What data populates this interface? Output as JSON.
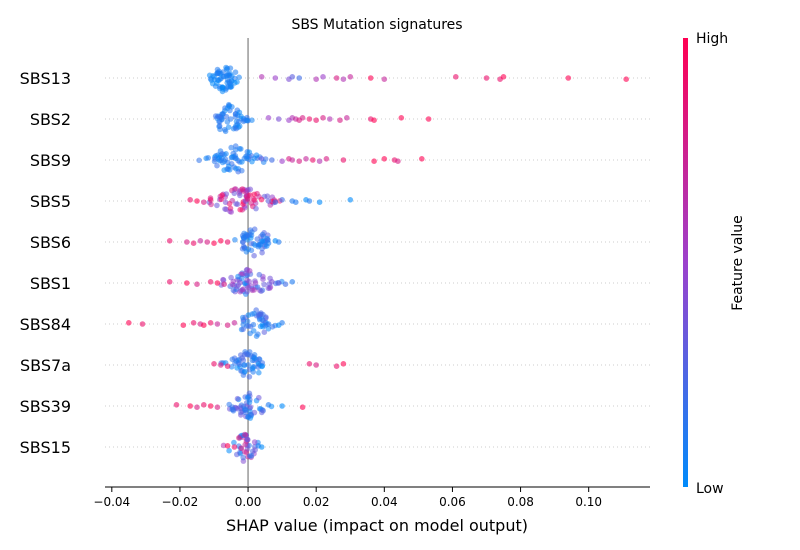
{
  "chart_data": {
    "type": "scatter",
    "subtype": "shap-beeswarm",
    "title": "SBS Mutation signatures",
    "xlabel": "SHAP value (impact on model output)",
    "xlim": [
      -0.042,
      0.118
    ],
    "xticks": [
      -0.04,
      -0.02,
      0.0,
      0.02,
      0.04,
      0.06,
      0.08,
      0.1
    ],
    "xtick_labels": [
      "−0.04",
      "−0.02",
      "0.00",
      "0.02",
      "0.04",
      "0.06",
      "0.08",
      "0.10"
    ],
    "zero_line": 0.0,
    "colorbar": {
      "title": "Feature value",
      "high_label": "High",
      "low_label": "Low",
      "color_high": "#ff0052",
      "color_mid": "#9c41cc",
      "color_low": "#008bfb"
    },
    "features": [
      {
        "name": "SBS13",
        "points": [
          {
            "x": 0.004,
            "v": 0.6
          },
          {
            "x": 0.008,
            "v": 0.5
          },
          {
            "x": 0.012,
            "v": 0.4
          },
          {
            "x": 0.013,
            "v": 0.3
          },
          {
            "x": 0.015,
            "v": 0.2
          },
          {
            "x": 0.02,
            "v": 0.6
          },
          {
            "x": 0.022,
            "v": 0.5
          },
          {
            "x": 0.026,
            "v": 0.8
          },
          {
            "x": 0.028,
            "v": 0.6
          },
          {
            "x": 0.03,
            "v": 0.7
          },
          {
            "x": 0.036,
            "v": 1.0
          },
          {
            "x": 0.04,
            "v": 0.7
          },
          {
            "x": 0.061,
            "v": 0.9
          },
          {
            "x": 0.07,
            "v": 0.9
          },
          {
            "x": 0.074,
            "v": 0.9
          },
          {
            "x": 0.075,
            "v": 1.0
          },
          {
            "x": 0.094,
            "v": 1.0
          },
          {
            "x": 0.111,
            "v": 1.0
          }
        ],
        "cluster": {
          "center": -0.007,
          "spread": 0.0025,
          "count": 60,
          "v_min": 0.0,
          "v_max": 0.12
        }
      },
      {
        "name": "SBS2",
        "points": [
          {
            "x": 0.006,
            "v": 0.5
          },
          {
            "x": 0.009,
            "v": 0.4
          },
          {
            "x": 0.012,
            "v": 0.5
          },
          {
            "x": 0.013,
            "v": 0.6
          },
          {
            "x": 0.014,
            "v": 0.7
          },
          {
            "x": 0.015,
            "v": 0.8
          },
          {
            "x": 0.016,
            "v": 0.8
          },
          {
            "x": 0.018,
            "v": 0.9
          },
          {
            "x": 0.02,
            "v": 0.9
          },
          {
            "x": 0.022,
            "v": 0.8
          },
          {
            "x": 0.024,
            "v": 0.6
          },
          {
            "x": 0.027,
            "v": 0.8
          },
          {
            "x": 0.029,
            "v": 0.7
          },
          {
            "x": 0.036,
            "v": 0.9
          },
          {
            "x": 0.037,
            "v": 1.0
          },
          {
            "x": 0.045,
            "v": 1.0
          },
          {
            "x": 0.053,
            "v": 1.0
          }
        ],
        "cluster": {
          "center": -0.006,
          "spread": 0.003,
          "count": 55,
          "v_min": 0.0,
          "v_max": 0.2
        }
      },
      {
        "name": "SBS9",
        "points": [
          {
            "x": 0.004,
            "v": 0.3
          },
          {
            "x": 0.007,
            "v": 0.2
          },
          {
            "x": 0.01,
            "v": 0.5
          },
          {
            "x": 0.012,
            "v": 0.8
          },
          {
            "x": 0.013,
            "v": 0.7
          },
          {
            "x": 0.015,
            "v": 0.8
          },
          {
            "x": 0.017,
            "v": 0.7
          },
          {
            "x": 0.019,
            "v": 0.9
          },
          {
            "x": 0.021,
            "v": 0.6
          },
          {
            "x": 0.023,
            "v": 0.8
          },
          {
            "x": 0.028,
            "v": 0.9
          },
          {
            "x": 0.037,
            "v": 1.0
          },
          {
            "x": 0.04,
            "v": 1.0
          },
          {
            "x": 0.043,
            "v": 0.9
          },
          {
            "x": 0.044,
            "v": 0.8
          },
          {
            "x": 0.051,
            "v": 1.0
          }
        ],
        "cluster": {
          "center": -0.004,
          "spread": 0.004,
          "count": 65,
          "v_min": 0.0,
          "v_max": 0.2
        }
      },
      {
        "name": "SBS5",
        "points": [
          {
            "x": -0.017,
            "v": 0.9
          },
          {
            "x": -0.015,
            "v": 1.0
          },
          {
            "x": -0.013,
            "v": 0.8
          },
          {
            "x": -0.011,
            "v": 0.9
          },
          {
            "x": 0.006,
            "v": 0.3
          },
          {
            "x": 0.008,
            "v": 0.2
          },
          {
            "x": 0.01,
            "v": 0.2
          },
          {
            "x": 0.013,
            "v": 0.1
          },
          {
            "x": 0.014,
            "v": 0.1
          },
          {
            "x": 0.017,
            "v": 0.0
          },
          {
            "x": 0.018,
            "v": 0.1
          },
          {
            "x": 0.021,
            "v": 0.0
          },
          {
            "x": 0.03,
            "v": 0.0
          }
        ],
        "cluster": {
          "center": -0.002,
          "spread": 0.005,
          "count": 70,
          "v_min": 0.3,
          "v_max": 1.0
        }
      },
      {
        "name": "SBS6",
        "points": [
          {
            "x": -0.023,
            "v": 0.9
          },
          {
            "x": -0.018,
            "v": 0.8
          },
          {
            "x": -0.016,
            "v": 0.9
          },
          {
            "x": -0.014,
            "v": 0.7
          },
          {
            "x": -0.012,
            "v": 0.8
          },
          {
            "x": -0.01,
            "v": 1.0
          },
          {
            "x": -0.008,
            "v": 1.0
          },
          {
            "x": -0.006,
            "v": 0.9
          },
          {
            "x": 0.006,
            "v": 0.1
          },
          {
            "x": 0.008,
            "v": 0.0
          },
          {
            "x": 0.009,
            "v": 0.1
          }
        ],
        "cluster": {
          "center": 0.002,
          "spread": 0.003,
          "count": 55,
          "v_min": 0.0,
          "v_max": 0.3
        }
      },
      {
        "name": "SBS1",
        "points": [
          {
            "x": -0.023,
            "v": 0.9
          },
          {
            "x": -0.018,
            "v": 1.0
          },
          {
            "x": -0.015,
            "v": 0.8
          },
          {
            "x": -0.011,
            "v": 0.9
          },
          {
            "x": -0.009,
            "v": 1.0
          },
          {
            "x": -0.007,
            "v": 0.8
          },
          {
            "x": 0.007,
            "v": 0.4
          },
          {
            "x": 0.009,
            "v": 0.3
          },
          {
            "x": 0.011,
            "v": 0.2
          },
          {
            "x": 0.013,
            "v": 0.1
          }
        ],
        "cluster": {
          "center": 0.0,
          "spread": 0.004,
          "count": 65,
          "v_min": 0.0,
          "v_max": 0.6
        }
      },
      {
        "name": "SBS84",
        "points": [
          {
            "x": -0.035,
            "v": 1.0
          },
          {
            "x": -0.031,
            "v": 0.9
          },
          {
            "x": -0.019,
            "v": 1.0
          },
          {
            "x": -0.016,
            "v": 0.9
          },
          {
            "x": -0.014,
            "v": 0.8
          },
          {
            "x": -0.013,
            "v": 1.0
          },
          {
            "x": -0.011,
            "v": 0.9
          },
          {
            "x": -0.009,
            "v": 0.7
          },
          {
            "x": -0.006,
            "v": 0.8
          },
          {
            "x": -0.004,
            "v": 0.7
          },
          {
            "x": 0.006,
            "v": 0.1
          },
          {
            "x": 0.009,
            "v": 0.0
          },
          {
            "x": 0.01,
            "v": 0.1
          }
        ],
        "cluster": {
          "center": 0.002,
          "spread": 0.003,
          "count": 45,
          "v_min": 0.0,
          "v_max": 0.3
        }
      },
      {
        "name": "SBS7a",
        "points": [
          {
            "x": -0.01,
            "v": 0.9
          },
          {
            "x": -0.008,
            "v": 0.8
          },
          {
            "x": -0.006,
            "v": 0.9
          },
          {
            "x": 0.018,
            "v": 0.9
          },
          {
            "x": 0.02,
            "v": 0.8
          },
          {
            "x": 0.026,
            "v": 0.9
          },
          {
            "x": 0.028,
            "v": 1.0
          }
        ],
        "cluster": {
          "center": 0.0,
          "spread": 0.003,
          "count": 55,
          "v_min": 0.0,
          "v_max": 0.25
        }
      },
      {
        "name": "SBS39",
        "points": [
          {
            "x": -0.021,
            "v": 0.9
          },
          {
            "x": -0.017,
            "v": 1.0
          },
          {
            "x": -0.015,
            "v": 0.8
          },
          {
            "x": -0.013,
            "v": 0.9
          },
          {
            "x": -0.011,
            "v": 1.0
          },
          {
            "x": -0.009,
            "v": 0.8
          },
          {
            "x": 0.006,
            "v": 0.1
          },
          {
            "x": 0.01,
            "v": 0.0
          },
          {
            "x": 0.016,
            "v": 1.0
          }
        ],
        "cluster": {
          "center": 0.0,
          "spread": 0.003,
          "count": 50,
          "v_min": 0.0,
          "v_max": 0.4
        }
      },
      {
        "name": "SBS15",
        "points": [
          {
            "x": -0.006,
            "v": 1.0
          },
          {
            "x": -0.004,
            "v": 0.9
          },
          {
            "x": -0.002,
            "v": 0.8
          },
          {
            "x": 0.003,
            "v": 0.1
          },
          {
            "x": 0.004,
            "v": 0.0
          }
        ],
        "cluster": {
          "center": -0.001,
          "spread": 0.0025,
          "count": 40,
          "v_min": 0.0,
          "v_max": 0.9
        }
      }
    ]
  }
}
